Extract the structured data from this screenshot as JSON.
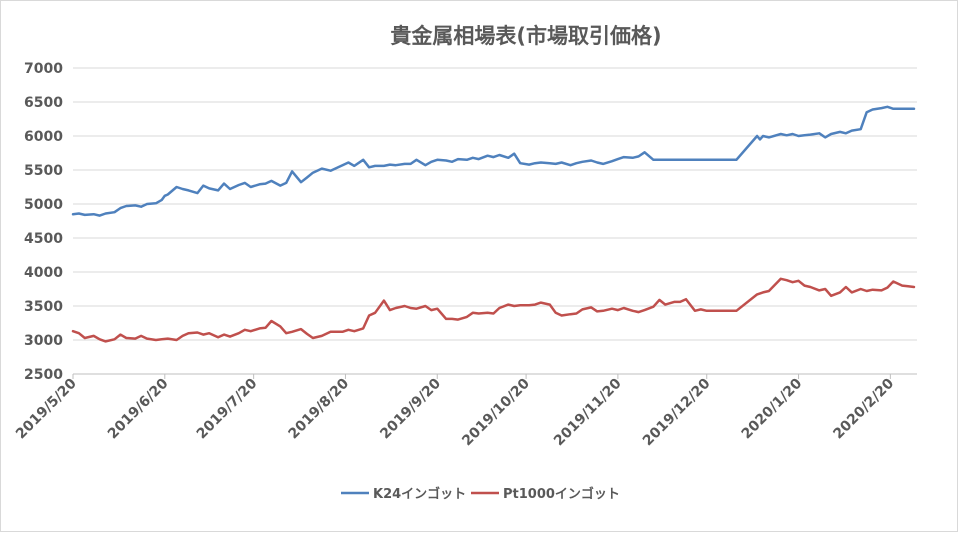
{
  "chart_data": {
    "type": "line",
    "title": "貴金属相場表(市場取引価格)",
    "xlabel": "",
    "ylabel": "",
    "ylim": [
      2500,
      7000
    ],
    "yticks": [
      2500,
      3000,
      3500,
      4000,
      4500,
      5000,
      5500,
      6000,
      6500,
      7000
    ],
    "xlim": [
      "2019-05-20",
      "2020-02-29"
    ],
    "xtick_labels": [
      "2019/5/20",
      "2019/6/20",
      "2019/7/20",
      "2019/8/20",
      "2019/9/20",
      "2019/10/20",
      "2019/11/20",
      "2019/12/20",
      "2020/1/20",
      "2020/2/20"
    ],
    "xtick_dates": [
      "2019-05-20",
      "2019-06-20",
      "2019-07-20",
      "2019-08-20",
      "2019-09-20",
      "2019-10-20",
      "2019-11-20",
      "2019-12-20",
      "2020-01-20",
      "2020-02-20"
    ],
    "grid": "horizontal",
    "legend_position": "bottom",
    "series": [
      {
        "name": "K24インゴット",
        "color": "#4f81bd",
        "x": [
          "2019-05-20",
          "2019-05-22",
          "2019-05-24",
          "2019-05-27",
          "2019-05-29",
          "2019-05-31",
          "2019-06-03",
          "2019-06-05",
          "2019-06-07",
          "2019-06-10",
          "2019-06-12",
          "2019-06-14",
          "2019-06-17",
          "2019-06-19",
          "2019-06-20",
          "2019-06-21",
          "2019-06-24",
          "2019-06-26",
          "2019-06-28",
          "2019-07-01",
          "2019-07-03",
          "2019-07-05",
          "2019-07-08",
          "2019-07-10",
          "2019-07-12",
          "2019-07-15",
          "2019-07-17",
          "2019-07-19",
          "2019-07-22",
          "2019-07-24",
          "2019-07-26",
          "2019-07-29",
          "2019-07-31",
          "2019-08-02",
          "2019-08-05",
          "2019-08-07",
          "2019-08-09",
          "2019-08-12",
          "2019-08-15",
          "2019-08-19",
          "2019-08-21",
          "2019-08-23",
          "2019-08-26",
          "2019-08-28",
          "2019-08-30",
          "2019-09-02",
          "2019-09-04",
          "2019-09-06",
          "2019-09-09",
          "2019-09-11",
          "2019-09-13",
          "2019-09-16",
          "2019-09-18",
          "2019-09-20",
          "2019-09-23",
          "2019-09-25",
          "2019-09-27",
          "2019-09-30",
          "2019-10-02",
          "2019-10-04",
          "2019-10-07",
          "2019-10-09",
          "2019-10-11",
          "2019-10-14",
          "2019-10-16",
          "2019-10-18",
          "2019-10-21",
          "2019-10-23",
          "2019-10-25",
          "2019-10-28",
          "2019-10-30",
          "2019-11-01",
          "2019-11-04",
          "2019-11-06",
          "2019-11-08",
          "2019-11-11",
          "2019-11-13",
          "2019-11-15",
          "2019-11-18",
          "2019-11-20",
          "2019-11-22",
          "2019-11-25",
          "2019-11-27",
          "2019-11-29",
          "2019-12-02",
          "2019-12-04",
          "2019-12-06",
          "2019-12-09",
          "2019-12-11",
          "2019-12-13",
          "2019-12-16",
          "2019-12-18",
          "2019-12-20",
          "2019-12-23",
          "2019-12-25",
          "2019-12-27",
          "2019-12-30",
          "2020-01-06",
          "2020-01-07",
          "2020-01-08",
          "2020-01-10",
          "2020-01-14",
          "2020-01-16",
          "2020-01-18",
          "2020-01-20",
          "2020-01-22",
          "2020-01-24",
          "2020-01-27",
          "2020-01-29",
          "2020-01-31",
          "2020-02-03",
          "2020-02-05",
          "2020-02-07",
          "2020-02-10",
          "2020-02-12",
          "2020-02-14",
          "2020-02-17",
          "2020-02-19",
          "2020-02-21",
          "2020-02-24",
          "2020-02-26",
          "2020-02-28"
        ],
        "values": [
          4850,
          4860,
          4840,
          4850,
          4830,
          4860,
          4880,
          4940,
          4970,
          4980,
          4960,
          5000,
          5010,
          5060,
          5120,
          5140,
          5250,
          5220,
          5200,
          5160,
          5270,
          5230,
          5200,
          5300,
          5220,
          5280,
          5310,
          5250,
          5290,
          5300,
          5340,
          5270,
          5310,
          5480,
          5320,
          5390,
          5460,
          5520,
          5490,
          5570,
          5610,
          5560,
          5650,
          5540,
          5560,
          5560,
          5580,
          5570,
          5590,
          5590,
          5650,
          5570,
          5620,
          5650,
          5640,
          5620,
          5660,
          5650,
          5680,
          5660,
          5710,
          5690,
          5720,
          5680,
          5740,
          5600,
          5580,
          5600,
          5610,
          5600,
          5590,
          5610,
          5570,
          5600,
          5620,
          5640,
          5610,
          5590,
          5630,
          5660,
          5690,
          5680,
          5700,
          5760,
          5650,
          5650,
          5650,
          5650,
          5650,
          5650,
          5650,
          5650,
          5650,
          5650,
          5650,
          5650,
          5650,
          6000,
          5950,
          6000,
          5980,
          6030,
          6010,
          6030,
          6000,
          6010,
          6020,
          6040,
          5980,
          6030,
          6060,
          6040,
          6080,
          6100,
          6350,
          6390,
          6410,
          6430,
          6400,
          6400,
          6400,
          6400
        ],
        "values_note": ""
      },
      {
        "name": "Pt1000インゴット",
        "color": "#c0504d",
        "x": [
          "2019-05-20",
          "2019-05-22",
          "2019-05-24",
          "2019-05-27",
          "2019-05-29",
          "2019-05-31",
          "2019-06-03",
          "2019-06-05",
          "2019-06-07",
          "2019-06-10",
          "2019-06-12",
          "2019-06-14",
          "2019-06-17",
          "2019-06-19",
          "2019-06-21",
          "2019-06-24",
          "2019-06-26",
          "2019-06-28",
          "2019-07-01",
          "2019-07-03",
          "2019-07-05",
          "2019-07-08",
          "2019-07-10",
          "2019-07-12",
          "2019-07-15",
          "2019-07-17",
          "2019-07-19",
          "2019-07-22",
          "2019-07-24",
          "2019-07-26",
          "2019-07-29",
          "2019-07-31",
          "2019-08-02",
          "2019-08-05",
          "2019-08-07",
          "2019-08-09",
          "2019-08-12",
          "2019-08-15",
          "2019-08-19",
          "2019-08-21",
          "2019-08-23",
          "2019-08-26",
          "2019-08-28",
          "2019-08-30",
          "2019-09-02",
          "2019-09-04",
          "2019-09-06",
          "2019-09-09",
          "2019-09-11",
          "2019-09-13",
          "2019-09-16",
          "2019-09-18",
          "2019-09-20",
          "2019-09-23",
          "2019-09-25",
          "2019-09-27",
          "2019-09-30",
          "2019-10-02",
          "2019-10-04",
          "2019-10-07",
          "2019-10-09",
          "2019-10-11",
          "2019-10-14",
          "2019-10-16",
          "2019-10-18",
          "2019-10-21",
          "2019-10-23",
          "2019-10-25",
          "2019-10-28",
          "2019-10-30",
          "2019-11-01",
          "2019-11-04",
          "2019-11-06",
          "2019-11-08",
          "2019-11-11",
          "2019-11-13",
          "2019-11-15",
          "2019-11-18",
          "2019-11-20",
          "2019-11-22",
          "2019-11-25",
          "2019-11-27",
          "2019-11-29",
          "2019-12-02",
          "2019-12-04",
          "2019-12-06",
          "2019-12-09",
          "2019-12-11",
          "2019-12-13",
          "2019-12-16",
          "2019-12-18",
          "2019-12-20",
          "2019-12-23",
          "2019-12-25",
          "2019-12-27",
          "2019-12-30",
          "2020-01-06",
          "2020-01-08",
          "2020-01-10",
          "2020-01-14",
          "2020-01-16",
          "2020-01-18",
          "2020-01-20",
          "2020-01-22",
          "2020-01-24",
          "2020-01-27",
          "2020-01-29",
          "2020-01-31",
          "2020-02-03",
          "2020-02-05",
          "2020-02-07",
          "2020-02-10",
          "2020-02-12",
          "2020-02-14",
          "2020-02-17",
          "2020-02-19",
          "2020-02-21",
          "2020-02-24",
          "2020-02-26",
          "2020-02-28"
        ],
        "values": [
          3130,
          3100,
          3030,
          3060,
          3010,
          2980,
          3010,
          3080,
          3030,
          3020,
          3060,
          3020,
          3000,
          3010,
          3020,
          3000,
          3060,
          3100,
          3110,
          3080,
          3100,
          3040,
          3080,
          3050,
          3100,
          3150,
          3130,
          3170,
          3180,
          3280,
          3200,
          3100,
          3120,
          3160,
          3090,
          3030,
          3060,
          3120,
          3120,
          3150,
          3130,
          3170,
          3360,
          3400,
          3580,
          3440,
          3470,
          3500,
          3470,
          3460,
          3500,
          3440,
          3460,
          3310,
          3310,
          3300,
          3340,
          3400,
          3390,
          3400,
          3390,
          3470,
          3520,
          3500,
          3510,
          3510,
          3520,
          3550,
          3520,
          3400,
          3360,
          3380,
          3390,
          3450,
          3480,
          3420,
          3430,
          3460,
          3440,
          3470,
          3430,
          3410,
          3440,
          3490,
          3590,
          3520,
          3560,
          3560,
          3600,
          3430,
          3450,
          3430,
          3430,
          3430,
          3430,
          3430,
          3670,
          3700,
          3720,
          3900,
          3880,
          3850,
          3870,
          3800,
          3780,
          3730,
          3750,
          3650,
          3700,
          3780,
          3700,
          3750,
          3720,
          3740,
          3730,
          3770,
          3860,
          3800,
          3790,
          3780
        ],
        "values_note": ""
      }
    ]
  }
}
